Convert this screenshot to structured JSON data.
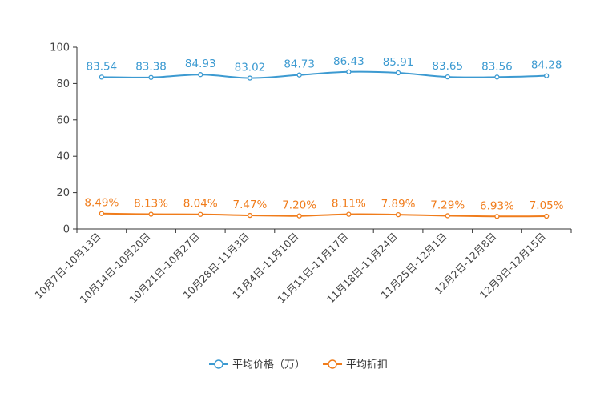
{
  "chart_data": {
    "type": "line",
    "categories": [
      "10月7日-10月13日",
      "10月14日-10月20日",
      "10月21日-10月27日",
      "10月28日-11月3日",
      "11月4日-11月10日",
      "11月11日-11月17日",
      "11月18日-11月24日",
      "11月25日-12月1日",
      "12月2日-12月8日",
      "12月9日-12月15日"
    ],
    "series": [
      {
        "name": "平均价格（万）",
        "values": [
          83.54,
          83.38,
          84.93,
          83.02,
          84.73,
          86.43,
          85.91,
          83.65,
          83.56,
          84.28
        ],
        "labels": [
          "83.54",
          "83.38",
          "84.93",
          "83.02",
          "84.73",
          "86.43",
          "85.91",
          "83.65",
          "83.56",
          "84.28"
        ],
        "color": "#3c9ad1"
      },
      {
        "name": "平均折扣",
        "values": [
          8.49,
          8.13,
          8.04,
          7.47,
          7.2,
          8.11,
          7.89,
          7.29,
          6.93,
          7.05
        ],
        "labels": [
          "8.49%",
          "8.13%",
          "8.04%",
          "7.47%",
          "7.20%",
          "8.11%",
          "7.89%",
          "7.29%",
          "6.93%",
          "7.05%"
        ],
        "color": "#f07c1b"
      }
    ],
    "ylim": [
      0,
      100
    ],
    "yticks": [
      "0",
      "20",
      "40",
      "60",
      "80",
      "100"
    ],
    "ytick_values": [
      0,
      20,
      40,
      60,
      80,
      100
    ],
    "legend_position": "bottom-center",
    "grid": false,
    "title": "",
    "xlabel": "",
    "ylabel": ""
  }
}
